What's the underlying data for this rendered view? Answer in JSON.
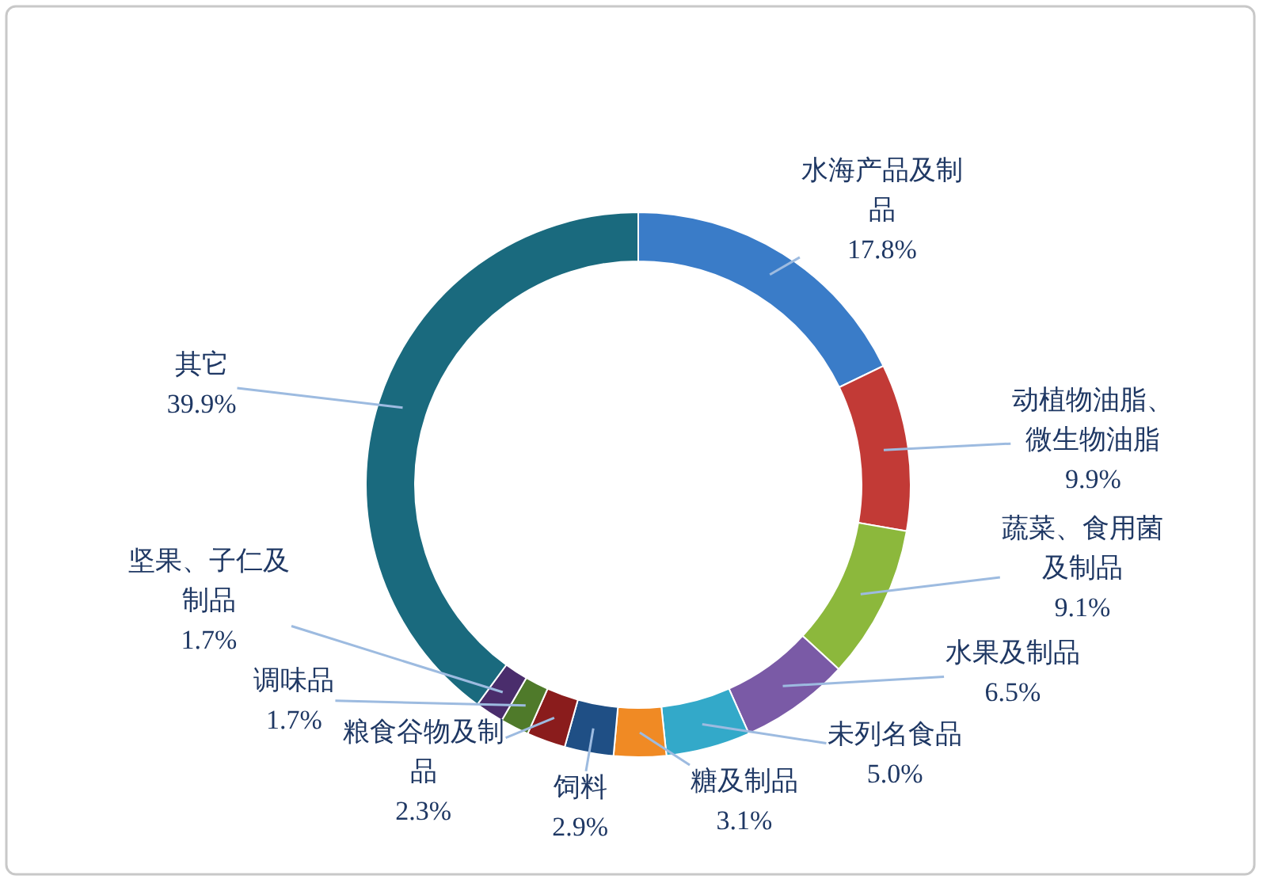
{
  "chart_data": {
    "type": "donut",
    "categories": [
      "水海产品及制品",
      "动植物油脂、微生物油脂",
      "蔬菜、食用菌及制品",
      "水果及制品",
      "未列名食品",
      "糖及制品",
      "饲料",
      "粮食谷物及制品",
      "调味品",
      "坚果、子仁及制品",
      "其它"
    ],
    "values": [
      17.8,
      9.9,
      9.1,
      6.5,
      5.0,
      3.1,
      2.9,
      2.3,
      1.7,
      1.7,
      39.9
    ],
    "colors": [
      "#3a7cc8",
      "#c23a36",
      "#8cb83c",
      "#7a5aa6",
      "#33a9c9",
      "#f08a24",
      "#1f4f85",
      "#8a1c1c",
      "#4f7a2a",
      "#4a2d6c",
      "#1a6a7e"
    ],
    "value_labels": [
      "17.8%",
      "9.9%",
      "9.1%",
      "6.5%",
      "5.0%",
      "3.1%",
      "2.9%",
      "2.3%",
      "1.7%",
      "1.7%",
      "39.9%"
    ]
  }
}
